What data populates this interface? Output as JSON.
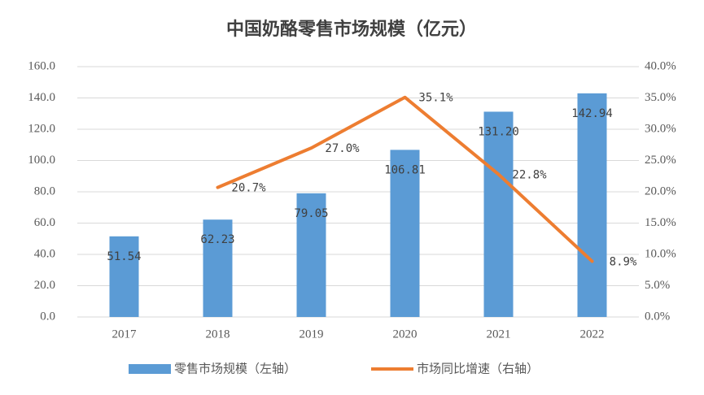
{
  "chart_data": {
    "type": "bar",
    "title": "中国奶酪零售市场规模（亿元）",
    "categories": [
      "2017",
      "2018",
      "2019",
      "2020",
      "2021",
      "2022"
    ],
    "series": [
      {
        "name": "零售市场规模（左轴）",
        "color": "#5b9bd5",
        "type": "bar",
        "values": [
          51.54,
          62.23,
          79.05,
          106.81,
          131.2,
          142.94
        ],
        "value_labels": [
          "51.54",
          "62.23",
          "79.05",
          "106.81",
          "131.20",
          "142.94"
        ]
      },
      {
        "name": "市场同比增速（右轴）",
        "color": "#ed7d31",
        "type": "line",
        "axis": "y2",
        "values": [
          null,
          20.7,
          27.0,
          35.1,
          22.8,
          8.9
        ],
        "value_labels": [
          null,
          "20.7%",
          "27.0%",
          "35.1%",
          "22.8%",
          "8.9%"
        ]
      }
    ],
    "ylim": [
      0,
      160
    ],
    "yticks": [
      {
        "value": 0,
        "label": "0.0"
      },
      {
        "value": 20,
        "label": "20.0"
      },
      {
        "value": 40,
        "label": "40.0"
      },
      {
        "value": 60,
        "label": "60.0"
      },
      {
        "value": 80,
        "label": "80.0"
      },
      {
        "value": 100,
        "label": "100.0"
      },
      {
        "value": 120,
        "label": "120.0"
      },
      {
        "value": 140,
        "label": "140.0"
      },
      {
        "value": 160,
        "label": "160.0"
      }
    ],
    "y2lim": [
      0,
      40
    ],
    "y2ticks": [
      {
        "value": 0,
        "label": "0.0%"
      },
      {
        "value": 5,
        "label": "5.0%"
      },
      {
        "value": 10,
        "label": "10.0%"
      },
      {
        "value": 15,
        "label": "15.0%"
      },
      {
        "value": 20,
        "label": "20.0%"
      },
      {
        "value": 25,
        "label": "25.0%"
      },
      {
        "value": 30,
        "label": "30.0%"
      },
      {
        "value": 35,
        "label": "35.0%"
      },
      {
        "value": 40,
        "label": "40.0%"
      }
    ],
    "grid": true,
    "legend": "bottom"
  }
}
